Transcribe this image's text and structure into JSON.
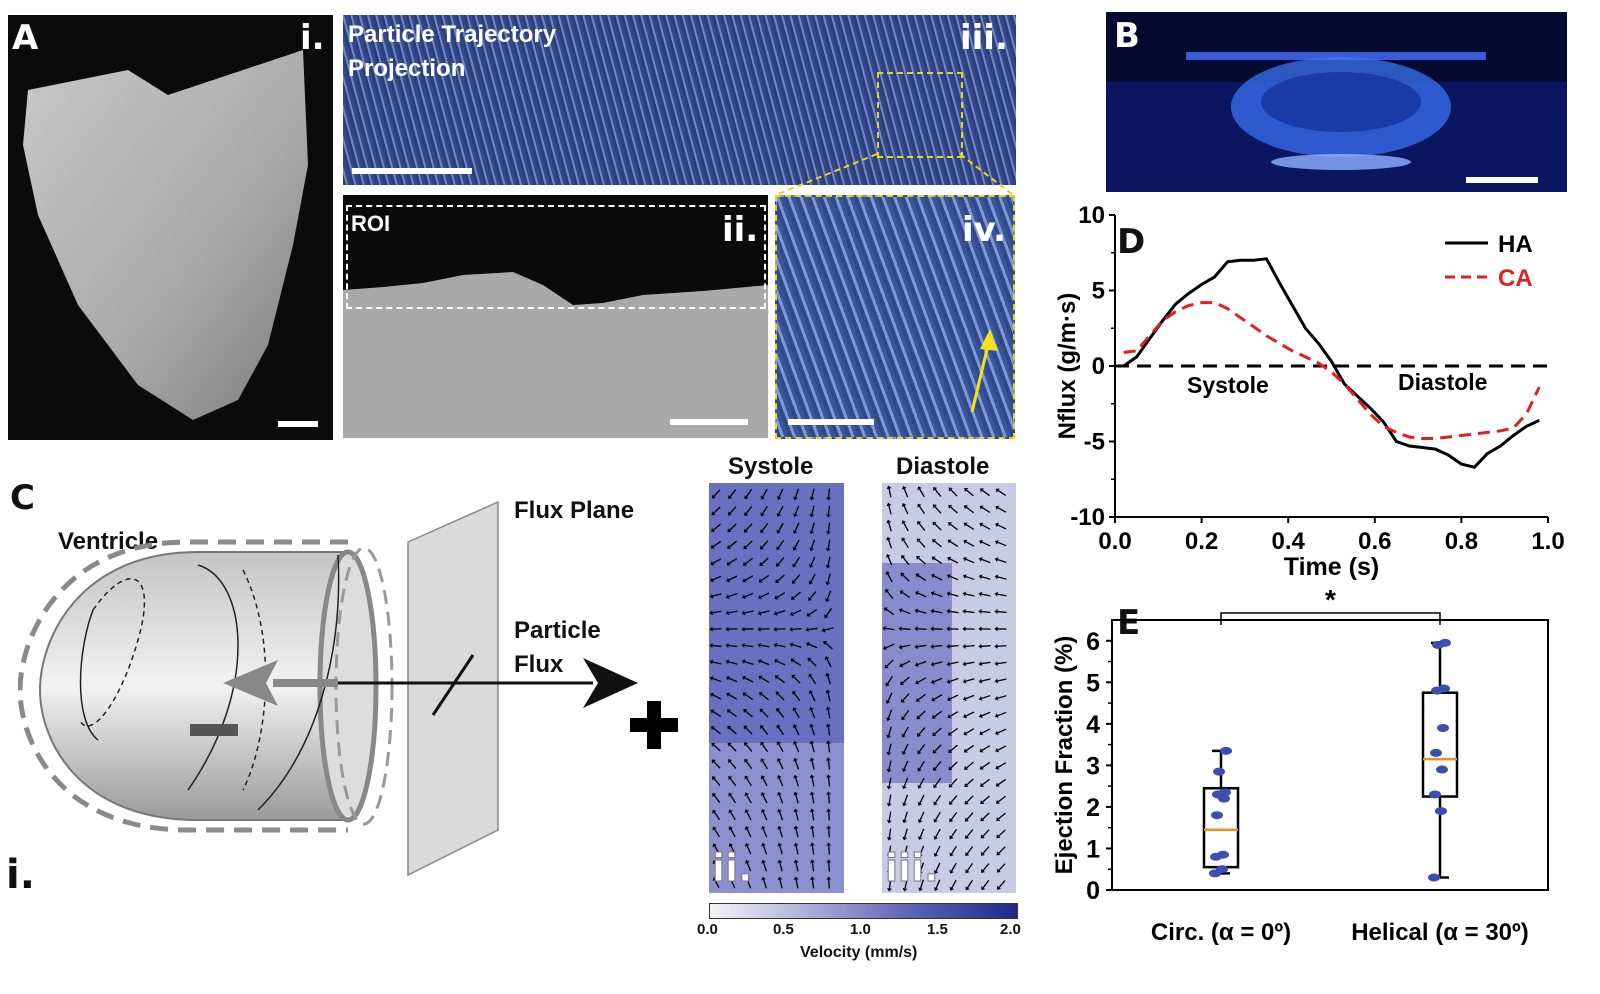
{
  "panels": {
    "A": {
      "letter": "A",
      "sub_i": "i.",
      "sub_ii": "ii.",
      "sub_iii": "iii.",
      "sub_iv": "iv.",
      "roi_label": "ROI",
      "trajectory_title_line1": "Particle Trajectory",
      "trajectory_title_line2": "Projection"
    },
    "B": {
      "letter": "B"
    },
    "C": {
      "letter": "C",
      "sub_i": "i.",
      "sub_ii": "ii.",
      "sub_iii": "iii.",
      "ventricle": "Ventricle",
      "flux_plane": "Flux Plane",
      "particle_line1": "Particle",
      "particle_line2": "Flux",
      "systole": "Systole",
      "diastole": "Diastole",
      "colorbar_title": "Velocity (mm/s)",
      "colorbar_ticks": [
        "0.0",
        "0.5",
        "1.0",
        "1.5",
        "2.0"
      ]
    },
    "D": {
      "letter": "D"
    },
    "E": {
      "letter": "E"
    }
  },
  "chart_data": [
    {
      "type": "line",
      "panel": "D",
      "xlabel": "Time (s)",
      "ylabel": "Nflux (g/m·s)",
      "xlim": [
        0.0,
        1.0
      ],
      "ylim": [
        -10,
        10
      ],
      "xticks": [
        "0.0",
        "0.2",
        "0.4",
        "0.6",
        "0.8",
        "1.0"
      ],
      "yticks": [
        "10",
        "5",
        "0",
        "-5",
        "-10"
      ],
      "annotations": [
        "Systole",
        "Diastole"
      ],
      "legend_position": "top-right",
      "series": [
        {
          "name": "HA",
          "color": "#000000",
          "dash": "solid",
          "x": [
            0.02,
            0.05,
            0.08,
            0.11,
            0.14,
            0.17,
            0.2,
            0.23,
            0.26,
            0.29,
            0.32,
            0.35,
            0.38,
            0.41,
            0.44,
            0.47,
            0.5,
            0.53,
            0.56,
            0.59,
            0.62,
            0.65,
            0.68,
            0.71,
            0.74,
            0.77,
            0.8,
            0.83,
            0.86,
            0.89,
            0.92,
            0.95,
            0.98
          ],
          "y": [
            0.0,
            0.6,
            1.8,
            3.0,
            4.1,
            4.8,
            5.4,
            5.9,
            6.9,
            7.0,
            7.0,
            7.1,
            5.5,
            4.0,
            2.5,
            1.5,
            0.3,
            -1.2,
            -2.0,
            -2.8,
            -3.7,
            -5.0,
            -5.3,
            -5.4,
            -5.5,
            -5.9,
            -6.5,
            -6.7,
            -5.8,
            -5.3,
            -4.6,
            -4.0,
            -3.6
          ]
        },
        {
          "name": "CA",
          "color": "#e02020",
          "dash": "dashed",
          "x": [
            0.02,
            0.05,
            0.08,
            0.11,
            0.14,
            0.17,
            0.2,
            0.23,
            0.26,
            0.29,
            0.32,
            0.35,
            0.38,
            0.41,
            0.44,
            0.47,
            0.5,
            0.53,
            0.56,
            0.59,
            0.62,
            0.65,
            0.68,
            0.71,
            0.74,
            0.77,
            0.8,
            0.83,
            0.86,
            0.89,
            0.92,
            0.95,
            0.98
          ],
          "y": [
            0.9,
            1.0,
            2.0,
            3.0,
            3.6,
            4.0,
            4.2,
            4.2,
            3.8,
            3.2,
            2.6,
            2.0,
            1.5,
            1.0,
            0.6,
            0.2,
            -0.4,
            -1.2,
            -2.2,
            -3.2,
            -4.0,
            -4.4,
            -4.7,
            -4.8,
            -4.8,
            -4.7,
            -4.6,
            -4.5,
            -4.4,
            -4.3,
            -4.1,
            -3.2,
            -1.4
          ]
        }
      ]
    },
    {
      "type": "box",
      "panel": "E",
      "ylabel": "Ejection Fraction (%)",
      "ylim": [
        0,
        6.5
      ],
      "yticks": [
        "0",
        "1",
        "2",
        "3",
        "4",
        "5",
        "6"
      ],
      "categories": [
        "Circ. (α = 0º)",
        "Helical (α = 30º)"
      ],
      "significance": "*",
      "boxes": [
        {
          "category": "Circ. (α = 0º)",
          "min": 0.4,
          "q1": 0.55,
          "median": 1.45,
          "q3": 2.45,
          "max": 3.35,
          "points": [
            0.4,
            0.5,
            0.8,
            0.85,
            1.8,
            2.2,
            2.3,
            2.35,
            2.85,
            3.35
          ]
        },
        {
          "category": "Helical (α = 30º)",
          "min": 0.3,
          "q1": 2.25,
          "median": 3.15,
          "q3": 4.75,
          "max": 5.95,
          "points": [
            0.3,
            1.9,
            2.3,
            2.9,
            3.3,
            3.9,
            4.8,
            4.85,
            5.9,
            5.95
          ]
        }
      ],
      "median_color": "#f28c28",
      "point_color": "#3b4fae"
    }
  ]
}
